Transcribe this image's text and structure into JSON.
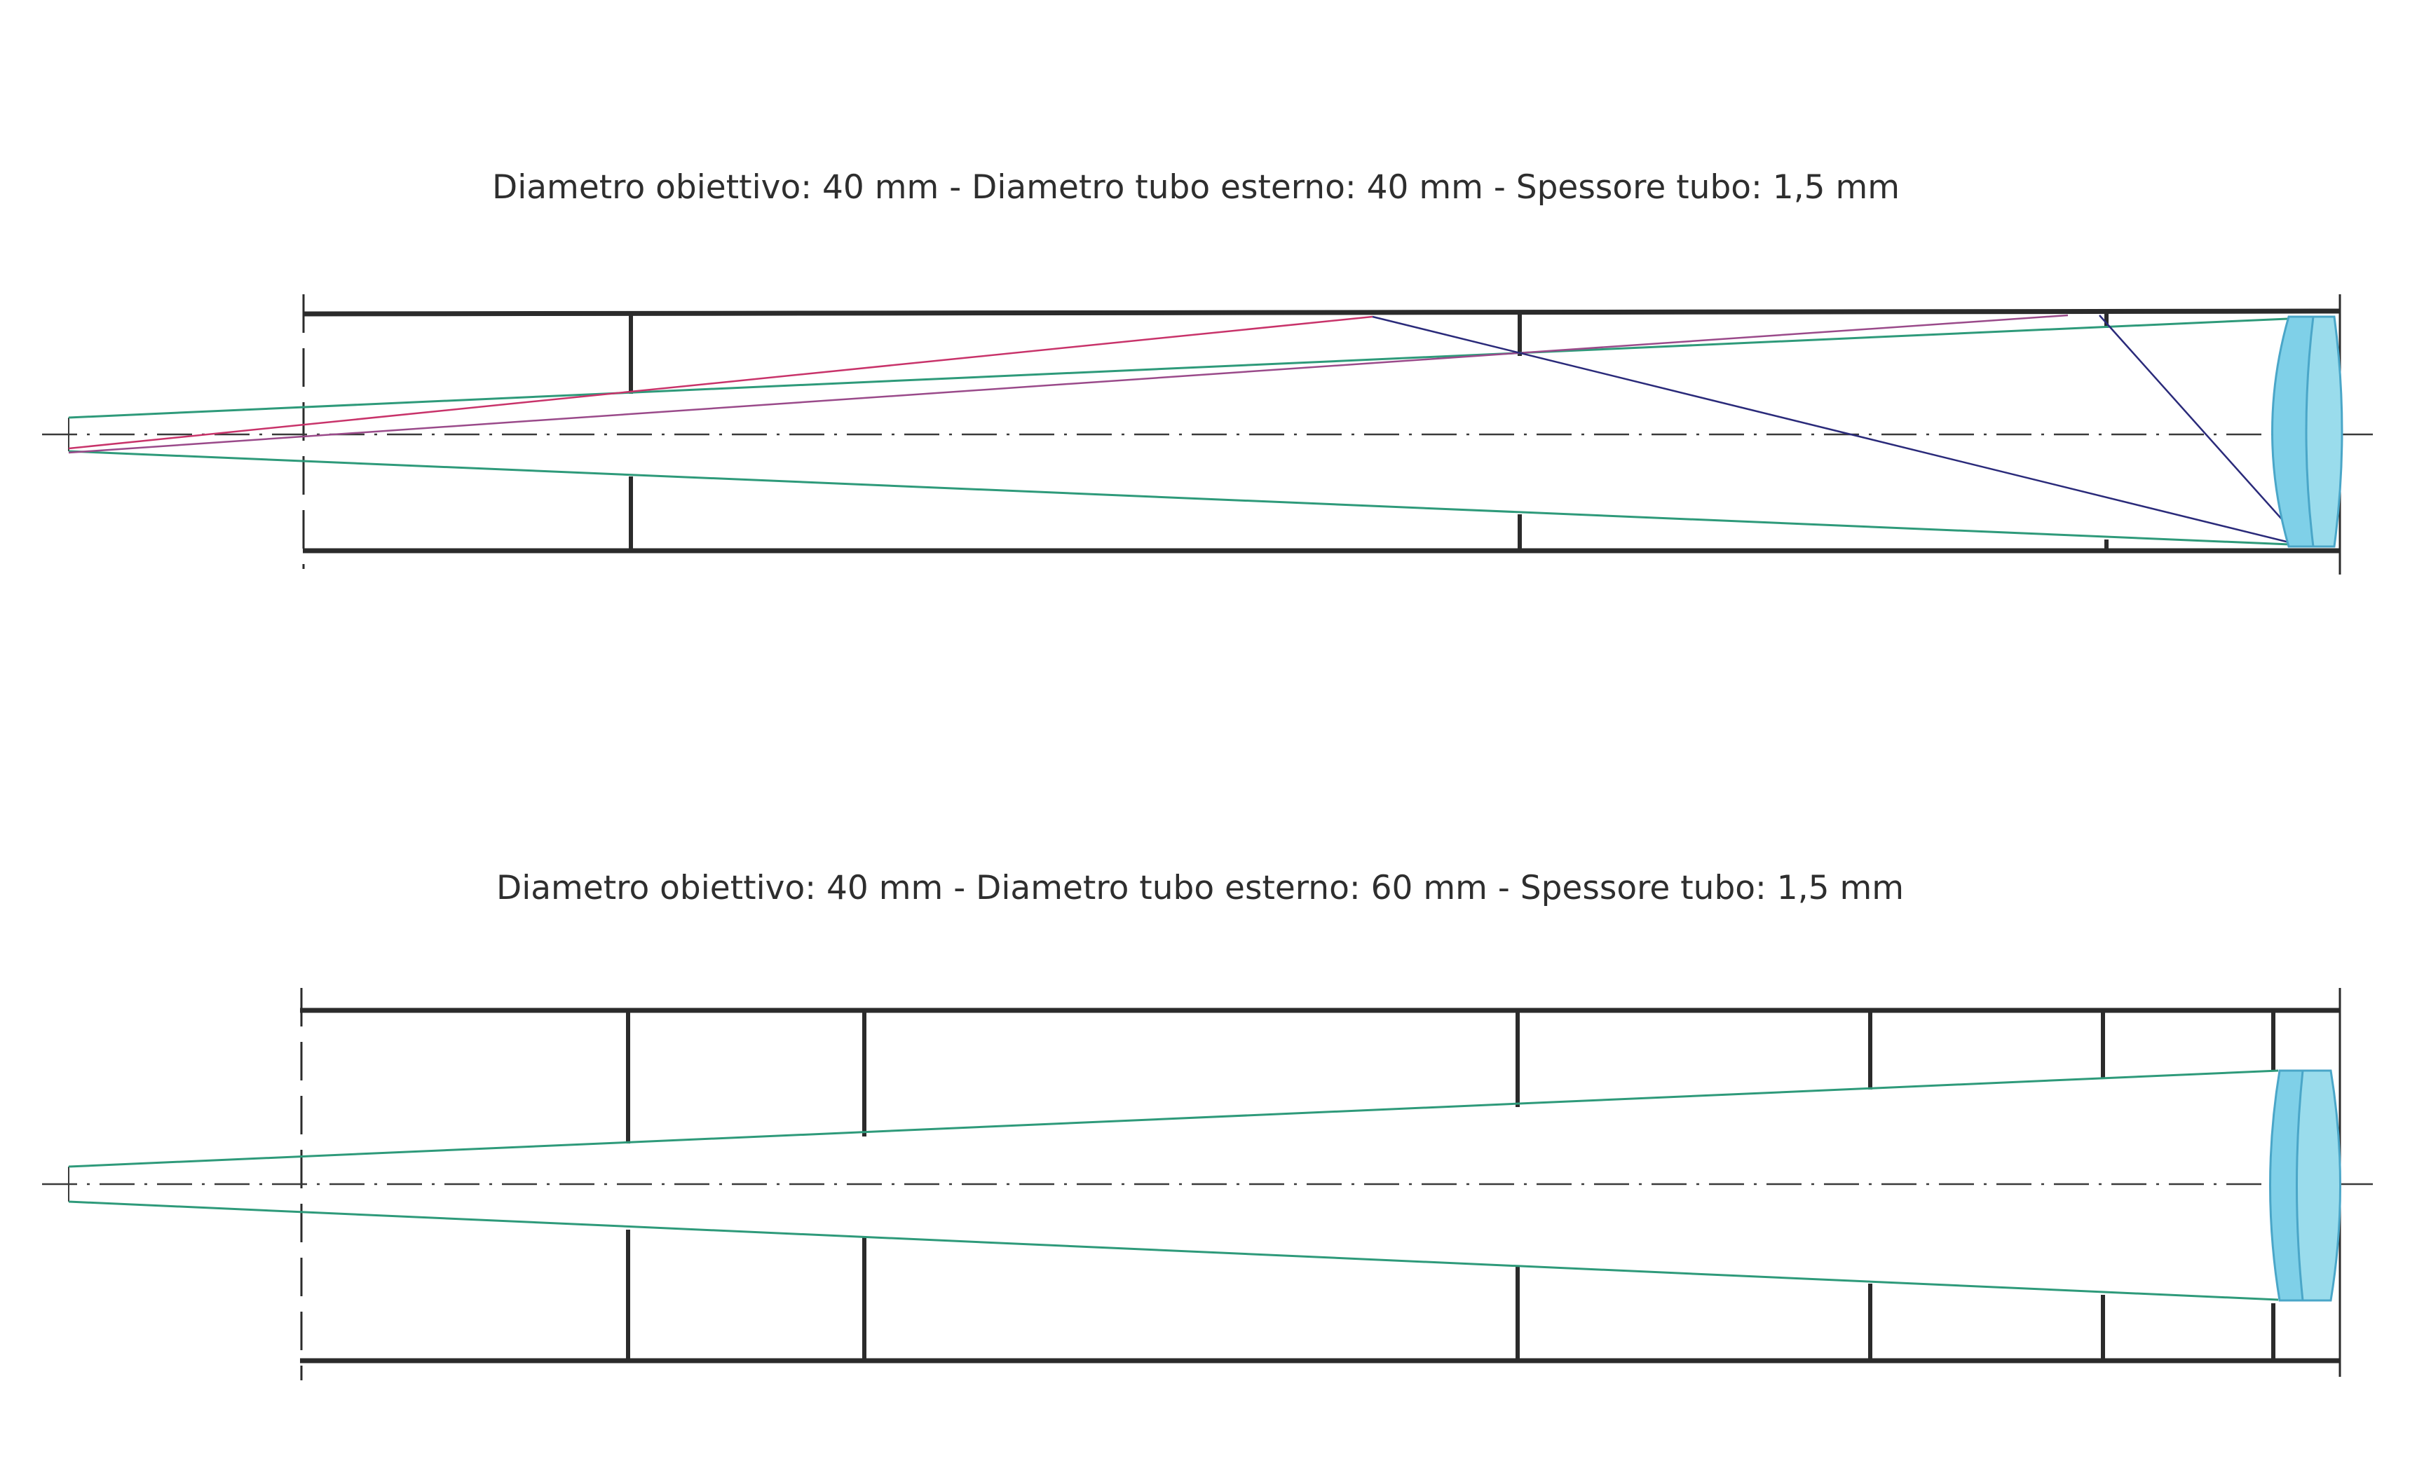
{
  "diagrams": [
    {
      "title": "Diametro obiettivo: 40 mm - Diametro tubo esterno: 40 mm  - Spessore tubo: 1,5 mm"
    },
    {
      "title": "Diametro obiettivo: 40 mm - Diametro tubo esterno: 60 mm  - Spessore tubo: 1,5 mm"
    }
  ],
  "colors": {
    "tube": "#2b2b2b",
    "axis": "#3a3a3a",
    "light_cone": "#2e9a7a",
    "stray_ray_1": "#c8336a",
    "stray_ray_2": "#9a4a8a",
    "reflected_ray": "#2a2a7a",
    "lens_fill": "#7fd0e8",
    "lens_stroke": "#4aa6c8"
  }
}
